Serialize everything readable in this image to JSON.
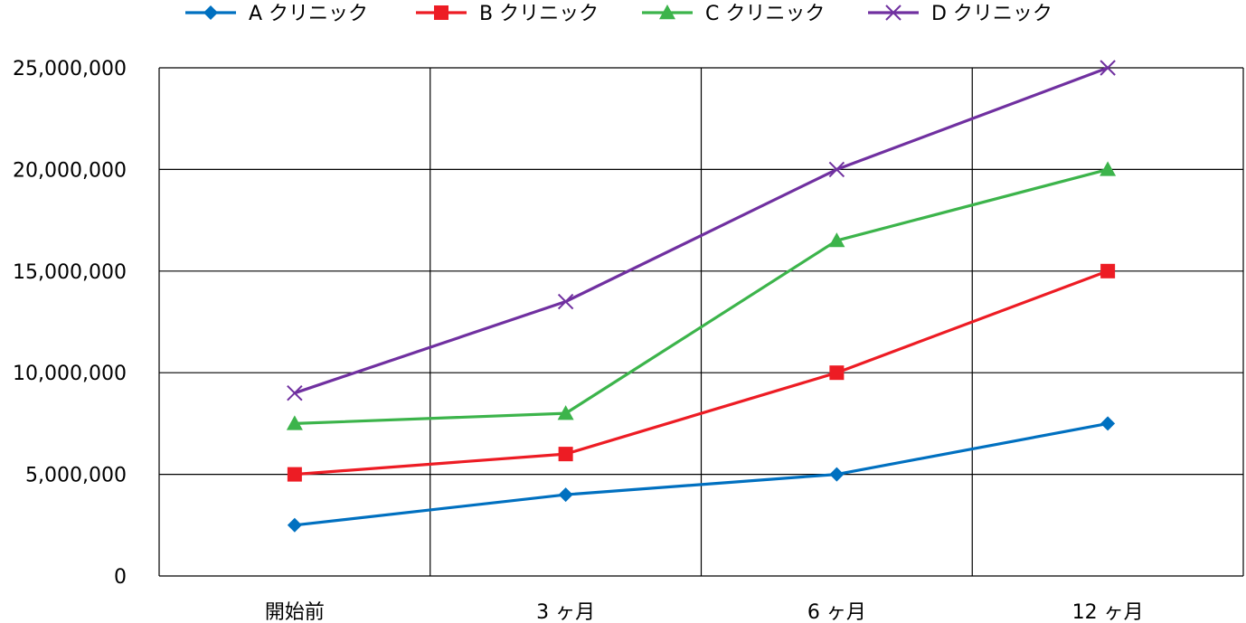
{
  "chart_data": {
    "type": "line",
    "categories": [
      "開始前",
      "3 ヶ月",
      "6 ヶ月",
      "12 ヶ月"
    ],
    "series": [
      {
        "name": "A クリニック",
        "color": "#0070C0",
        "marker": "diamond",
        "values": [
          2500000,
          4000000,
          5000000,
          7500000
        ]
      },
      {
        "name": "B クリニック",
        "color": "#ED1C24",
        "marker": "square",
        "values": [
          5000000,
          6000000,
          10000000,
          15000000
        ]
      },
      {
        "name": "C クリニック",
        "color": "#3CB44B",
        "marker": "triangle",
        "values": [
          7500000,
          8000000,
          16500000,
          20000000
        ]
      },
      {
        "name": "D クリニック",
        "color": "#7030A0",
        "marker": "x",
        "values": [
          9000000,
          13500000,
          20000000,
          25000000
        ]
      }
    ],
    "ylim": [
      0,
      25000000
    ],
    "yticks": [
      0,
      5000000,
      10000000,
      15000000,
      20000000,
      25000000
    ],
    "ytick_labels": [
      "0",
      "5,000,000",
      "10,000,000",
      "15,000,000",
      "20,000,000",
      "25,000,000"
    ],
    "grid": true,
    "legend_position": "top"
  }
}
